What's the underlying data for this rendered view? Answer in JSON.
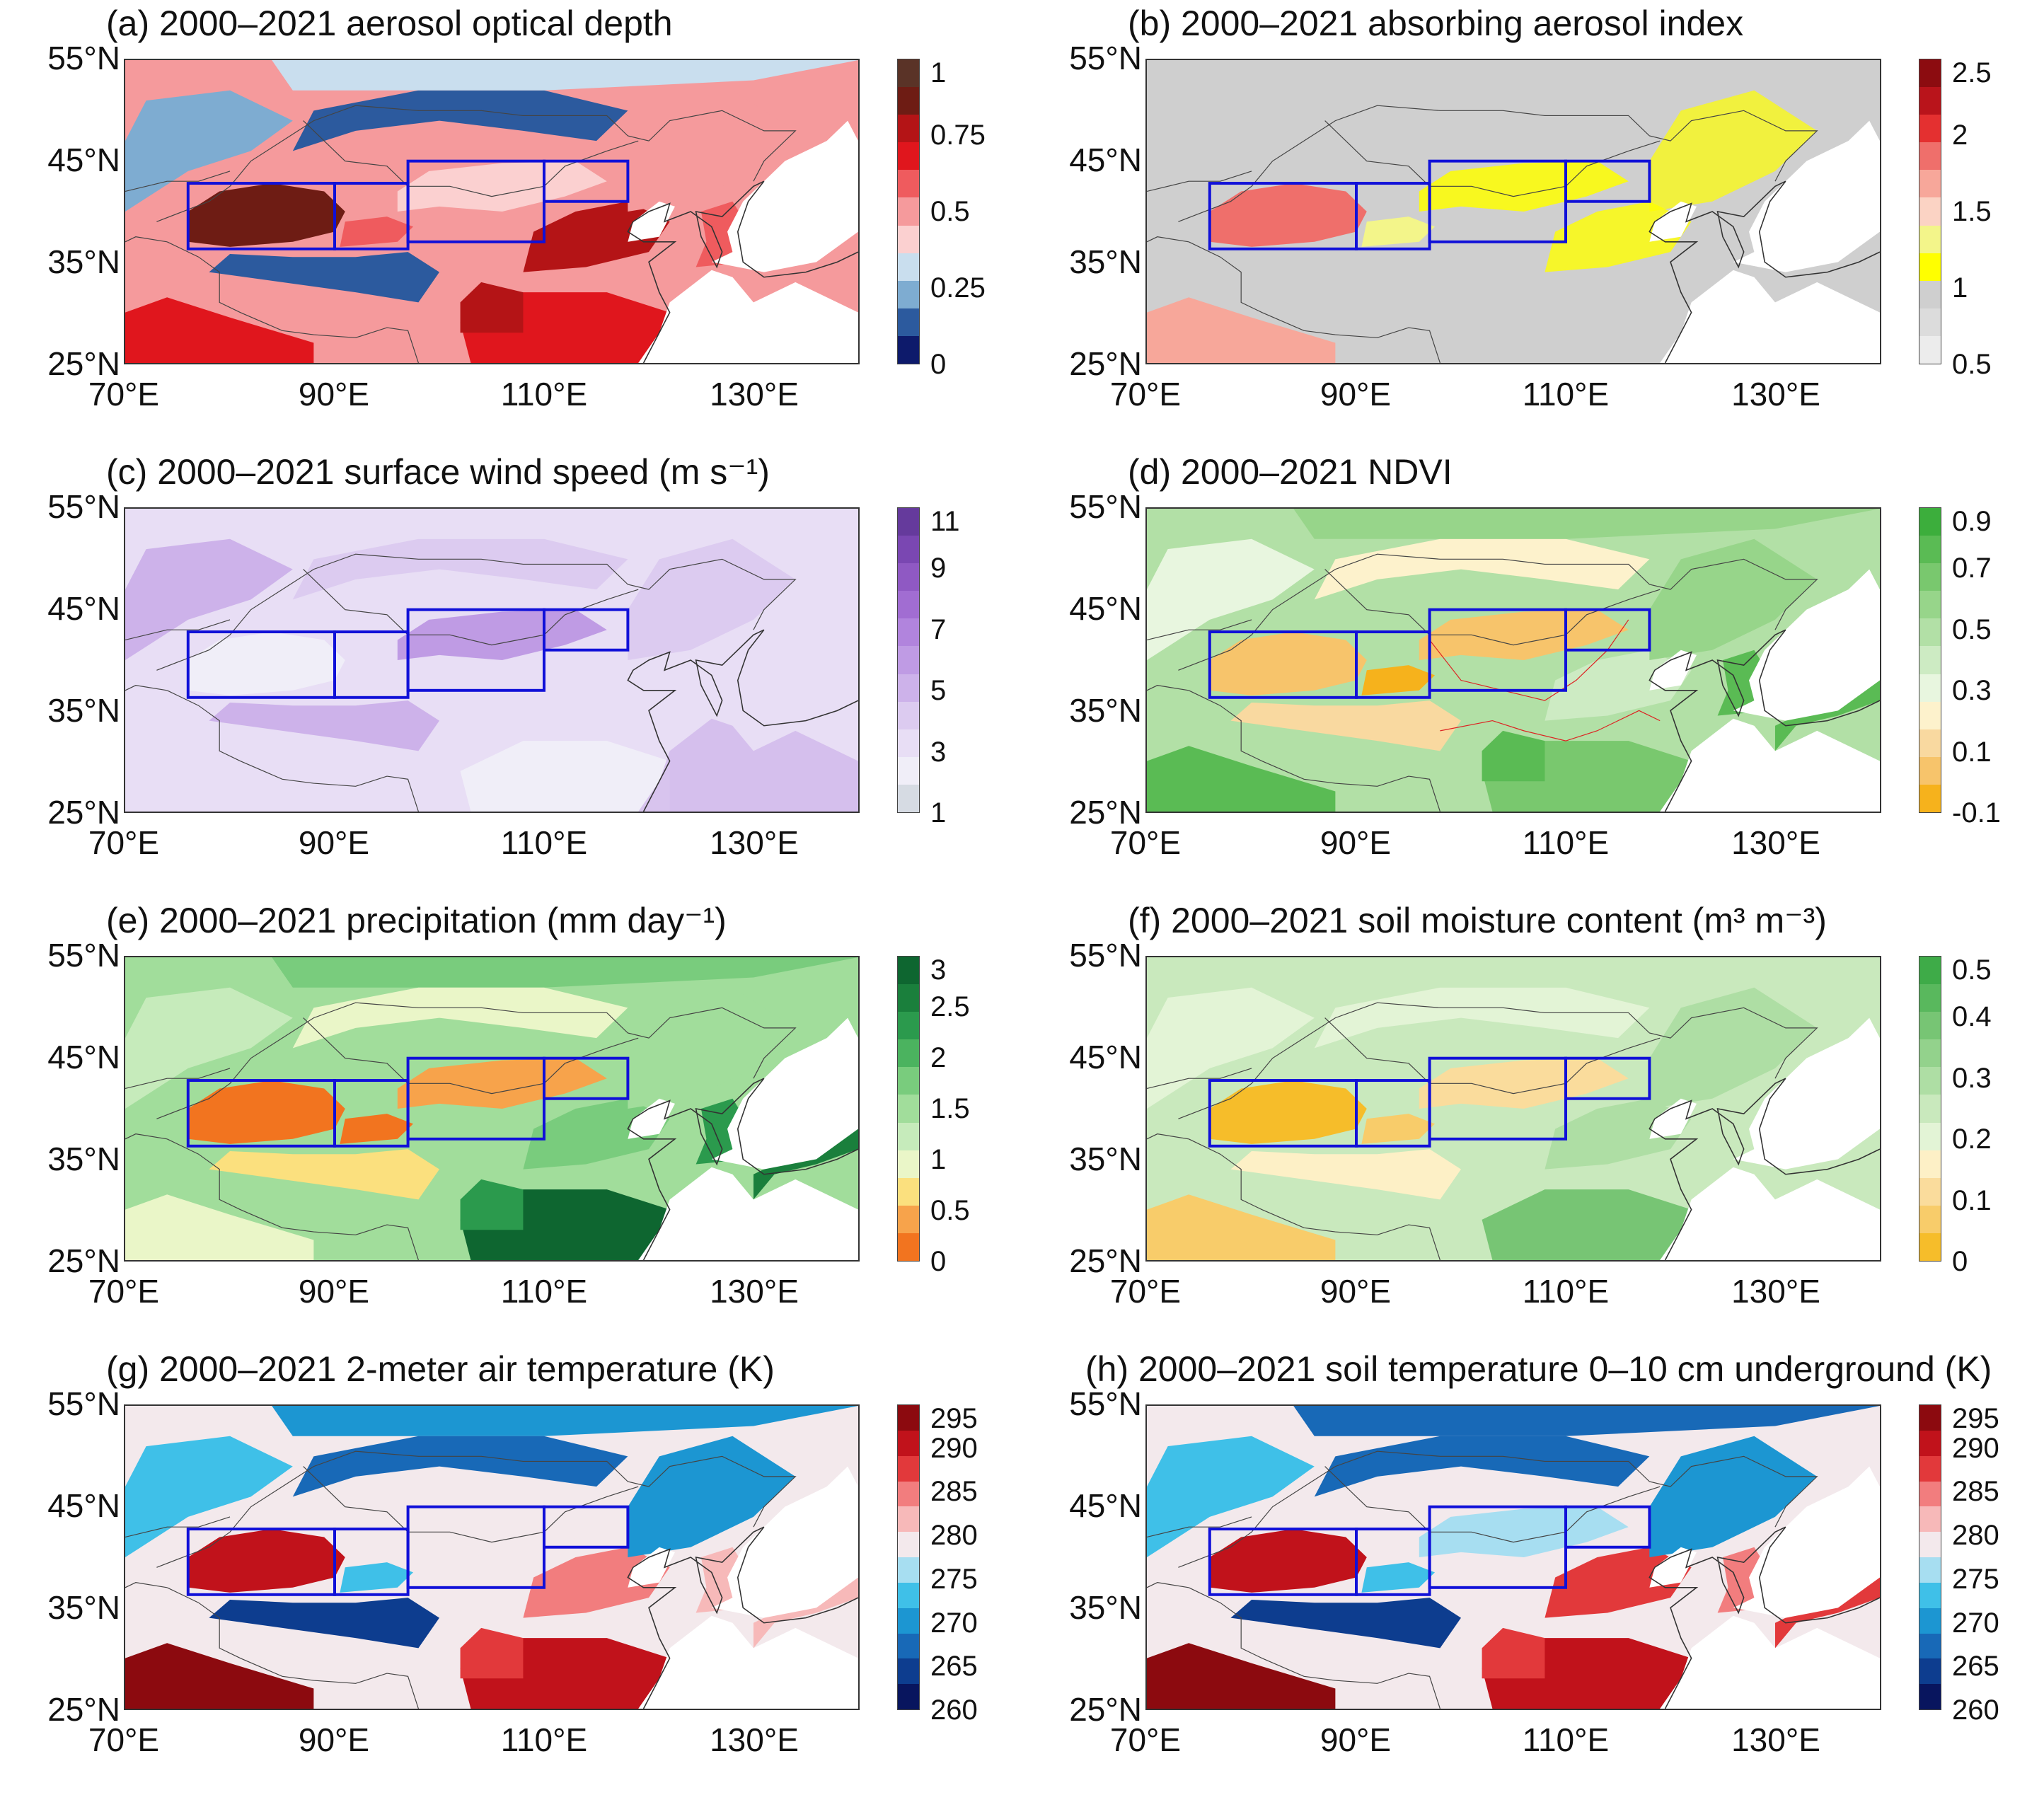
{
  "figure": {
    "lat_labels": [
      "55°N",
      "45°N",
      "35°N",
      "25°N"
    ],
    "lon_labels": [
      "70°E",
      "90°E",
      "110°E",
      "130°E"
    ],
    "panels": [
      {
        "id": "a",
        "title": "(a) 2000–2021 aerosol optical depth",
        "colorbar": {
          "labels": [
            "0",
            "0.25",
            "0.5",
            "0.75",
            "1"
          ],
          "colors": [
            "#0d1a6b",
            "#2c5a9e",
            "#7eacd1",
            "#c9deee",
            "#fbd0d0",
            "#f59a9c",
            "#ef5b5e",
            "#e0161d",
            "#b41416",
            "#6e1c14",
            "#5a3327"
          ]
        }
      },
      {
        "id": "b",
        "title": "(b) 2000–2021 absorbing aerosol index",
        "colorbar": {
          "labels": [
            "0.5",
            "1",
            "1.5",
            "2",
            "2.5"
          ],
          "colors": [
            "#ececec",
            "#dcdcdc",
            "#cfcfcf",
            "#ffff00",
            "#f3f58a",
            "#fbd3c4",
            "#f7a79a",
            "#ef6f6b",
            "#e43030",
            "#b9141b",
            "#8c0c10"
          ]
        }
      },
      {
        "id": "c",
        "title": "(c) 2000–2021 surface wind speed (m s⁻¹)",
        "colorbar": {
          "labels": [
            "1",
            "3",
            "5",
            "7",
            "9",
            "11"
          ],
          "colors": [
            "#d6dbe3",
            "#f0eef8",
            "#e8def5",
            "#dccbf0",
            "#cdb2ea",
            "#bf9be4",
            "#b184dd",
            "#a16dd2",
            "#8f59c3",
            "#7a47b2",
            "#653a9c"
          ]
        }
      },
      {
        "id": "d",
        "title": "(d)  2000–2021 NDVI",
        "colorbar": {
          "labels": [
            "-0.1",
            "0.1",
            "0.3",
            "0.5",
            "0.7",
            "0.9"
          ],
          "colors": [
            "#f6b21c",
            "#f7c46b",
            "#f9d9a0",
            "#fdf2cc",
            "#e8f6df",
            "#cdebc3",
            "#b2e0a6",
            "#97d58a",
            "#79c86e",
            "#5abb54",
            "#3cae3c"
          ]
        }
      },
      {
        "id": "e",
        "title": "(e) 2000–2021 precipitation (mm day⁻¹)",
        "colorbar": {
          "labels": [
            "0",
            "0.5",
            "1",
            "1.5",
            "2",
            "2.5",
            "3"
          ],
          "colors": [
            "#f2741f",
            "#f7a34b",
            "#fbe07e",
            "#eaf6c8",
            "#c6ebbb",
            "#a1dd9b",
            "#79cc7d",
            "#4bb35f",
            "#2b9a4d",
            "#1a7f3c",
            "#0e6630"
          ]
        }
      },
      {
        "id": "f",
        "title": "(f)  2000–2021 soil moisture content (m³ m⁻³)",
        "colorbar": {
          "labels": [
            "0",
            "0.1",
            "0.2",
            "0.3",
            "0.4",
            "0.5"
          ],
          "colors": [
            "#f6bd2a",
            "#f8cc6a",
            "#fadc9c",
            "#fdf0c6",
            "#e3f4d6",
            "#c9e9bd",
            "#aedea4",
            "#93d28c",
            "#77c574",
            "#59b85d",
            "#3eab48"
          ]
        }
      },
      {
        "id": "g",
        "title": "(g) 2000–2021 2-meter air temperature (K)",
        "colorbar": {
          "labels": [
            "260",
            "265",
            "270",
            "275",
            "280",
            "285",
            "290",
            "295"
          ],
          "colors": [
            "#08155e",
            "#0d3d8f",
            "#1869b7",
            "#1c96d2",
            "#3fc0e8",
            "#a7def1",
            "#f3e9ec",
            "#f7b9b9",
            "#f27d7e",
            "#e2393b",
            "#c1121b",
            "#8c0a0f"
          ]
        }
      },
      {
        "id": "h",
        "title": "(h) 2000–2021 soil temperature 0–10 cm underground (K)",
        "colorbar": {
          "labels": [
            "260",
            "265",
            "270",
            "275",
            "280",
            "285",
            "290",
            "295"
          ],
          "colors": [
            "#08155e",
            "#0d3d8f",
            "#1869b7",
            "#1c96d2",
            "#3fc0e8",
            "#a7def1",
            "#f3e9ec",
            "#f7b9b9",
            "#f27d7e",
            "#e2393b",
            "#c1121b",
            "#8c0a0f"
          ]
        }
      }
    ],
    "colors": {
      "box_outline": "#1010d8",
      "coastline": "#333333",
      "ocean": "#ffffff"
    }
  }
}
